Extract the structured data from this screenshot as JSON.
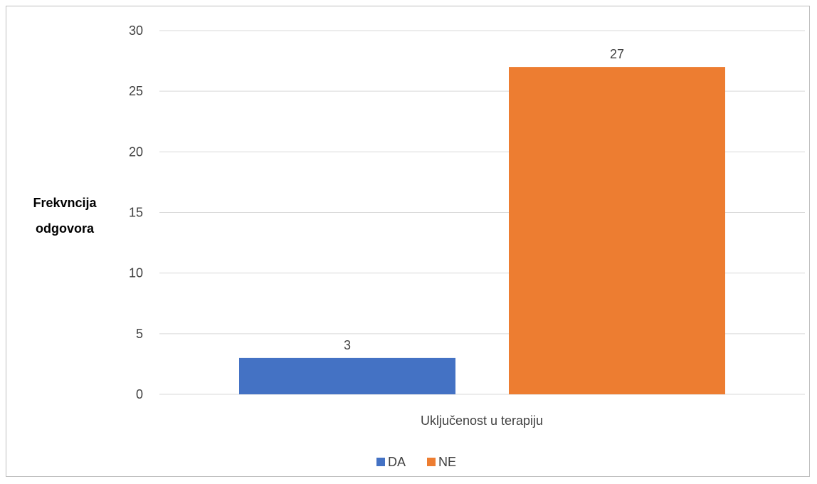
{
  "chart_data": {
    "type": "bar",
    "categories": [
      "Uključenost u terapiju"
    ],
    "series": [
      {
        "name": "DA",
        "values": [
          3
        ],
        "color": "#4472C4"
      },
      {
        "name": "NE",
        "values": [
          27
        ],
        "color": "#ED7D31"
      }
    ],
    "ylabel_lines": [
      "Frekvncija",
      "odgovora"
    ],
    "ylim": [
      0,
      30
    ],
    "yticks": [
      0,
      5,
      10,
      15,
      20,
      25,
      30
    ],
    "grid": true,
    "legend": "bottom",
    "gridline_color": "#d9d9d9"
  }
}
